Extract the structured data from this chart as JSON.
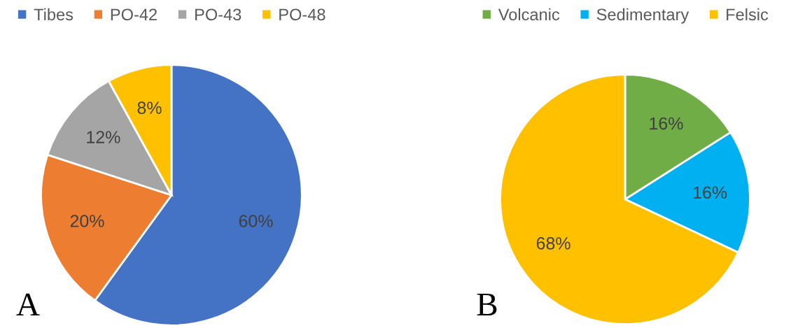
{
  "chart_data": [
    {
      "type": "pie",
      "categories": [
        "Tibes",
        "PO-42",
        "PO-43",
        "PO-48"
      ],
      "values": [
        60,
        20,
        12,
        8
      ],
      "colors": [
        "#4472c4",
        "#ed7d31",
        "#a5a5a5",
        "#ffc000"
      ],
      "value_labels": [
        "60%",
        "20%",
        "12%",
        "8%"
      ],
      "legend": "top",
      "annotations": [
        "A"
      ]
    },
    {
      "type": "pie",
      "categories": [
        "Volcanic",
        "Sedimentary",
        "Felsic"
      ],
      "values": [
        16,
        16,
        68
      ],
      "colors": [
        "#70ad47",
        "#00b0f0",
        "#ffc000"
      ],
      "value_labels": [
        "16%",
        "16%",
        "68%"
      ],
      "legend": "top",
      "annotations": [
        "B"
      ]
    }
  ]
}
